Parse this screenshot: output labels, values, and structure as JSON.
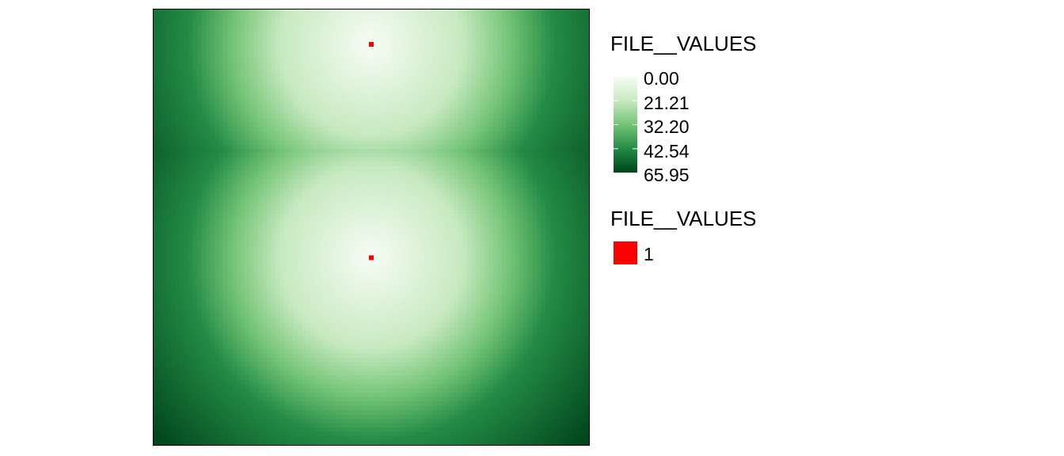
{
  "chart_data": {
    "type": "heatmap",
    "raster": {
      "grid_size": 100,
      "sources": [
        [
          0.5,
          0.92
        ],
        [
          0.5,
          0.43
        ]
      ],
      "color_scale": {
        "breaks": [
          0.0,
          21.21,
          32.2,
          42.54,
          65.95
        ],
        "colors": [
          "#f7fcf5",
          "#c7e9c0",
          "#74c476",
          "#238b45",
          "#00441b"
        ]
      }
    },
    "points": [
      {
        "x": 0.5,
        "y": 0.92,
        "value": 1
      },
      {
        "x": 0.5,
        "y": 0.43,
        "value": 1
      }
    ],
    "legend": {
      "raster_title": "FILE__VALUES",
      "raster_labels": [
        "0.00",
        "21.21",
        "32.20",
        "42.54",
        "65.95"
      ],
      "points_title": "FILE__VALUES",
      "points_label": "1",
      "points_color": "#ff0000"
    },
    "legend_placement": "right"
  }
}
